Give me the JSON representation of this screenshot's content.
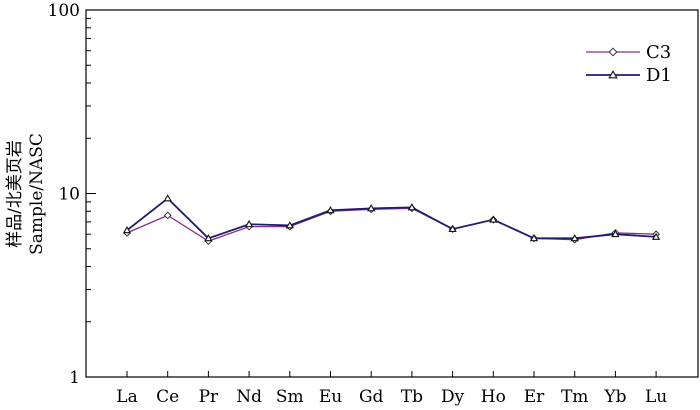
{
  "chart_data": {
    "type": "line",
    "title": "",
    "xlabel": "",
    "ylabel_line1": "样品/北美页岩",
    "ylabel_line2": "Sample/NASC",
    "y_scale": "log",
    "ylim": [
      1,
      100
    ],
    "y_ticks": [
      {
        "value": 1,
        "label": "1"
      },
      {
        "value": 10,
        "label": "10"
      },
      {
        "value": 100,
        "label": "100"
      }
    ],
    "categories": [
      "La",
      "Ce",
      "Pr",
      "Nd",
      "Sm",
      "Eu",
      "Gd",
      "Tb",
      "Dy",
      "Ho",
      "Er",
      "Tm",
      "Yb",
      "Lu"
    ],
    "grid": false,
    "legend_position": "top-right",
    "series": [
      {
        "name": "C3",
        "marker": "diamond",
        "color": "#8a2f8a",
        "values": [
          6.1,
          7.6,
          5.5,
          6.6,
          6.6,
          8.0,
          8.2,
          8.3,
          6.4,
          7.2,
          5.7,
          5.6,
          6.1,
          6.0
        ]
      },
      {
        "name": "D1",
        "marker": "triangle",
        "color": "#1e1e6e",
        "values": [
          6.3,
          9.4,
          5.7,
          6.8,
          6.7,
          8.1,
          8.3,
          8.4,
          6.4,
          7.2,
          5.7,
          5.7,
          6.0,
          5.8
        ]
      }
    ]
  }
}
